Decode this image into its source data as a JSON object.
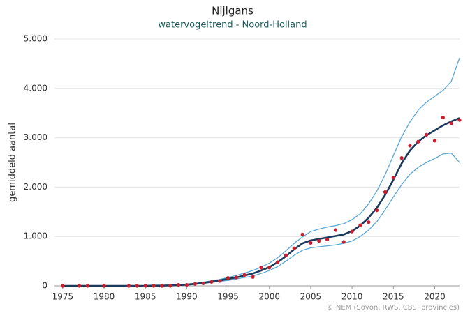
{
  "chart_data": {
    "type": "line",
    "title": "Nijlgans",
    "subtitle": "watervogeltrend - Noord-Holland",
    "ylabel": "gemiddeld aantal",
    "credit": "© NEM (Sovon, RWS, CBS, provincies)",
    "xlim": [
      1974,
      2023
    ],
    "xticks": [
      1975,
      1980,
      1985,
      1990,
      1995,
      2000,
      2005,
      2010,
      2015,
      2020
    ],
    "ylim": [
      0,
      5000
    ],
    "yticks": [
      0,
      {
        "value": 1000,
        "label": "1.000"
      },
      {
        "value": 2000,
        "label": "2.000"
      },
      {
        "value": 3000,
        "label": "3.000"
      },
      {
        "value": 4000,
        "label": "4.000"
      },
      {
        "value": 5000,
        "label": "5.000"
      }
    ],
    "grid": true,
    "x": [
      1975,
      1976,
      1977,
      1978,
      1979,
      1980,
      1981,
      1982,
      1983,
      1984,
      1985,
      1986,
      1987,
      1988,
      1989,
      1990,
      1991,
      1992,
      1993,
      1994,
      1995,
      1996,
      1997,
      1998,
      1999,
      2000,
      2001,
      2002,
      2003,
      2004,
      2005,
      2006,
      2007,
      2008,
      2009,
      2010,
      2011,
      2012,
      2013,
      2014,
      2015,
      2016,
      2017,
      2018,
      2019,
      2020,
      2021,
      2022,
      2023
    ],
    "series": [
      {
        "color": "#5aa7d6",
        "width": 1.3,
        "values": [
          0,
          0,
          0,
          0,
          0,
          0,
          0,
          0,
          0,
          0,
          0,
          10,
          10,
          15,
          20,
          35,
          50,
          75,
          100,
          130,
          170,
          210,
          260,
          310,
          380,
          460,
          570,
          710,
          860,
          990,
          1100,
          1150,
          1190,
          1220,
          1260,
          1340,
          1460,
          1660,
          1920,
          2250,
          2640,
          3020,
          3320,
          3560,
          3720,
          3840,
          3960,
          4140,
          4620
        ]
      },
      {
        "color": "#5aa7d6",
        "width": 1.3,
        "values": [
          0,
          0,
          0,
          0,
          0,
          0,
          0,
          0,
          0,
          0,
          0,
          0,
          0,
          5,
          10,
          15,
          30,
          45,
          70,
          90,
          110,
          140,
          170,
          200,
          250,
          310,
          390,
          500,
          620,
          720,
          770,
          790,
          810,
          830,
          860,
          910,
          1000,
          1130,
          1300,
          1540,
          1800,
          2050,
          2260,
          2400,
          2500,
          2580,
          2670,
          2690,
          2500
        ]
      },
      {
        "color": "#1b3a5c",
        "width": 2.6,
        "values": [
          0,
          0,
          0,
          0,
          0,
          0,
          0,
          0,
          0,
          0,
          0,
          5,
          5,
          10,
          15,
          25,
          40,
          60,
          85,
          110,
          140,
          170,
          210,
          250,
          310,
          380,
          480,
          600,
          740,
          860,
          920,
          950,
          980,
          1010,
          1040,
          1110,
          1220,
          1380,
          1580,
          1840,
          2150,
          2480,
          2740,
          2920,
          3050,
          3150,
          3250,
          3330,
          3400
        ]
      }
    ],
    "points": {
      "color": "#c8202f",
      "x": [
        1975,
        1977,
        1978,
        1980,
        1983,
        1984,
        1985,
        1986,
        1987,
        1988,
        1989,
        1990,
        1991,
        1992,
        1993,
        1994,
        1995,
        1996,
        1997,
        1998,
        1999,
        2000,
        2001,
        2002,
        2003,
        2004,
        2005,
        2006,
        2007,
        2008,
        2009,
        2010,
        2011,
        2012,
        2013,
        2014,
        2015,
        2016,
        2017,
        2018,
        2019,
        2020,
        2021,
        2022,
        2023
      ],
      "values": [
        0,
        0,
        0,
        0,
        0,
        0,
        0,
        0,
        0,
        0,
        20,
        20,
        40,
        50,
        80,
        100,
        160,
        170,
        220,
        180,
        370,
        370,
        480,
        620,
        760,
        1040,
        870,
        910,
        940,
        1130,
        890,
        1100,
        1230,
        1290,
        1530,
        1900,
        2190,
        2590,
        2840,
        2920,
        3060,
        2940,
        3410,
        3290,
        3360
      ]
    }
  }
}
